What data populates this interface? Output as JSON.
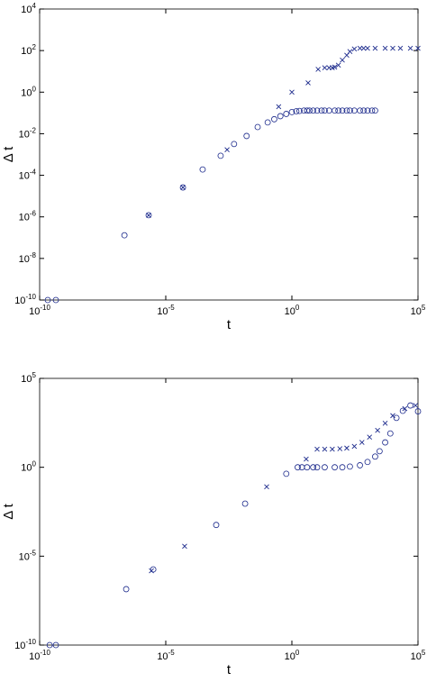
{
  "chart_data": [
    {
      "type": "scatter",
      "xlabel": "t",
      "ylabel": "Δ t",
      "xscale": "log",
      "yscale": "log",
      "xlim": [
        1e-10,
        100000.0
      ],
      "ylim": [
        1e-10,
        10000.0
      ],
      "xticks": [
        {
          "value": 1e-10,
          "label": "10^-10"
        },
        {
          "value": 1e-05,
          "label": "10^-5"
        },
        {
          "value": 1,
          "label": "10^0"
        },
        {
          "value": 100000.0,
          "label": "10^5"
        }
      ],
      "yticks": [
        {
          "value": 1e-10,
          "label": "10^-10"
        },
        {
          "value": 1e-08,
          "label": "10^-8"
        },
        {
          "value": 1e-06,
          "label": "10^-6"
        },
        {
          "value": 0.0001,
          "label": "10^-4"
        },
        {
          "value": 0.01,
          "label": "10^-2"
        },
        {
          "value": 1,
          "label": "10^0"
        },
        {
          "value": 100,
          "label": "10^2"
        },
        {
          "value": 10000.0,
          "label": "10^4"
        }
      ],
      "series": [
        {
          "marker": "o",
          "color": "#1c2a8c",
          "x": [
            2.1e-10,
            4.4e-10,
            2.3e-07,
            2.1e-06,
            4.8e-05,
            0.00029,
            0.0015,
            0.0051,
            0.016,
            0.044,
            0.11,
            0.2,
            0.35,
            0.6,
            1,
            1.5,
            2,
            3,
            4,
            5,
            7,
            10,
            15,
            20,
            30,
            50,
            70,
            100,
            150,
            200,
            300,
            500,
            700,
            1000,
            1500,
            2000
          ],
          "values": [
            1e-10,
            1e-10,
            1.3e-07,
            1.2e-06,
            2.6e-05,
            0.00019,
            0.00087,
            0.0032,
            0.0078,
            0.021,
            0.035,
            0.05,
            0.07,
            0.09,
            0.11,
            0.12,
            0.125,
            0.13,
            0.13,
            0.13,
            0.13,
            0.13,
            0.13,
            0.13,
            0.13,
            0.13,
            0.13,
            0.13,
            0.13,
            0.13,
            0.13,
            0.13,
            0.13,
            0.13,
            0.13,
            0.13
          ]
        },
        {
          "marker": "x",
          "color": "#1c2a8c",
          "x": [
            2.1e-06,
            4.8e-05,
            0.0027,
            0.3,
            1,
            4.4,
            11,
            20,
            30,
            40,
            50,
            70,
            100,
            150,
            200,
            300,
            500,
            700,
            1000,
            2000,
            5000,
            10000,
            20000,
            50000,
            100000
          ],
          "values": [
            1.2e-06,
            2.6e-05,
            0.0017,
            0.2,
            1,
            2.8,
            12.6,
            15,
            15,
            15,
            16,
            20,
            35,
            60,
            90,
            120,
            130,
            130,
            130,
            130,
            130,
            130,
            130,
            130,
            130
          ]
        }
      ]
    },
    {
      "type": "scatter",
      "xlabel": "t",
      "ylabel": "Δ t",
      "xscale": "log",
      "yscale": "log",
      "xlim": [
        1e-10,
        100000.0
      ],
      "ylim": [
        1e-10,
        100000.0
      ],
      "xticks": [
        {
          "value": 1e-10,
          "label": "10^-10"
        },
        {
          "value": 1e-05,
          "label": "10^-5"
        },
        {
          "value": 1,
          "label": "10^0"
        },
        {
          "value": 100000.0,
          "label": "10^5"
        }
      ],
      "yticks": [
        {
          "value": 1e-10,
          "label": "10^-10"
        },
        {
          "value": 1e-05,
          "label": "10^-5"
        },
        {
          "value": 1,
          "label": "10^0"
        },
        {
          "value": 100000.0,
          "label": "10^5"
        }
      ],
      "series": [
        {
          "marker": "o",
          "color": "#1c2a8c",
          "x": [
            2.5e-10,
            4.4e-10,
            2.7e-07,
            3.2e-06,
            0.001,
            0.014,
            0.6,
            1.7,
            2.5,
            4,
            7,
            10,
            20,
            50,
            100,
            200,
            500,
            1000,
            2000,
            3000,
            5000,
            8000,
            14000,
            25000,
            50000,
            100000
          ],
          "values": [
            1e-10,
            1e-10,
            1.4e-07,
            1.8e-06,
            0.00057,
            0.009,
            0.43,
            1,
            1,
            1,
            1,
            1,
            1,
            1,
            1,
            1.1,
            1.3,
            2,
            4,
            8,
            25,
            80,
            600,
            1500,
            3000,
            1400
          ]
        },
        {
          "marker": "x",
          "color": "#1c2a8c",
          "x": [
            2.7e-06,
            5.6e-05,
            0.1,
            3.7,
            10,
            20,
            40,
            80,
            150,
            300,
            600,
            1200,
            2500,
            5000,
            10000,
            30000,
            80000
          ],
          "values": [
            1.5e-06,
            3.6e-05,
            0.08,
            2.9,
            10.5,
            10.5,
            10.5,
            11,
            12,
            15,
            25,
            50,
            120,
            300,
            800,
            2000,
            3000
          ]
        }
      ]
    }
  ]
}
